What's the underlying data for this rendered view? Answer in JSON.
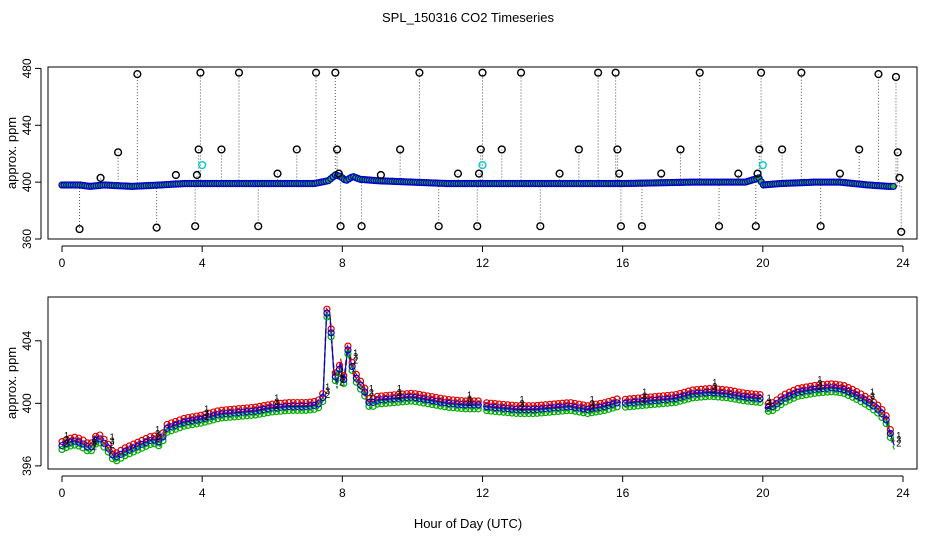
{
  "title": "SPL_150316  CO2 Timeseries",
  "xlabel": "Hour of Day (UTC)",
  "chart_data": [
    {
      "type": "scatter",
      "panel": "top",
      "ylabel": "approx. ppm",
      "xlim": [
        -0.4,
        24.4
      ],
      "ylim": [
        360,
        481
      ],
      "xticks": [
        0,
        4,
        8,
        12,
        16,
        20,
        24
      ],
      "yticks": [
        360,
        400,
        440,
        480
      ],
      "baseline": [
        [
          0.0,
          398
        ],
        [
          0.5,
          398
        ],
        [
          0.8,
          397
        ],
        [
          1.2,
          398
        ],
        [
          2.0,
          397
        ],
        [
          2.8,
          398
        ],
        [
          3.5,
          399
        ],
        [
          4.0,
          399
        ],
        [
          6.0,
          399
        ],
        [
          7.2,
          399
        ],
        [
          7.6,
          401
        ],
        [
          7.8,
          405
        ],
        [
          7.95,
          404
        ],
        [
          8.1,
          401
        ],
        [
          8.3,
          404
        ],
        [
          8.5,
          402
        ],
        [
          9.0,
          401
        ],
        [
          10.0,
          400
        ],
        [
          11.0,
          399
        ],
        [
          13.0,
          399
        ],
        [
          14.0,
          399
        ],
        [
          16.0,
          399
        ],
        [
          18.0,
          400
        ],
        [
          19.5,
          400
        ],
        [
          19.9,
          403
        ],
        [
          20.0,
          398
        ],
        [
          20.5,
          399
        ],
        [
          21.5,
          400
        ],
        [
          22.2,
          400
        ],
        [
          23.0,
          398
        ],
        [
          23.6,
          397
        ],
        [
          23.75,
          397
        ]
      ],
      "spikes": [
        {
          "x": 0.5,
          "y": 367
        },
        {
          "x": 1.1,
          "y": 403
        },
        {
          "x": 1.6,
          "y": 421
        },
        {
          "x": 2.15,
          "y": 476
        },
        {
          "x": 2.7,
          "y": 368
        },
        {
          "x": 3.25,
          "y": 405
        },
        {
          "x": 3.8,
          "y": 369
        },
        {
          "x": 3.85,
          "y": 405
        },
        {
          "x": 3.9,
          "y": 423
        },
        {
          "x": 3.95,
          "y": 477
        },
        {
          "x": 4.55,
          "y": 423
        },
        {
          "x": 5.05,
          "y": 477
        },
        {
          "x": 5.6,
          "y": 369
        },
        {
          "x": 6.15,
          "y": 406
        },
        {
          "x": 6.7,
          "y": 423
        },
        {
          "x": 7.25,
          "y": 477
        },
        {
          "x": 7.8,
          "y": 477
        },
        {
          "x": 7.85,
          "y": 423
        },
        {
          "x": 7.9,
          "y": 406
        },
        {
          "x": 7.95,
          "y": 369
        },
        {
          "x": 8.55,
          "y": 369
        },
        {
          "x": 9.1,
          "y": 405
        },
        {
          "x": 9.65,
          "y": 423
        },
        {
          "x": 10.2,
          "y": 477
        },
        {
          "x": 10.75,
          "y": 369
        },
        {
          "x": 11.3,
          "y": 406
        },
        {
          "x": 11.85,
          "y": 369
        },
        {
          "x": 11.9,
          "y": 406
        },
        {
          "x": 11.95,
          "y": 423
        },
        {
          "x": 12.0,
          "y": 477
        },
        {
          "x": 12.55,
          "y": 423
        },
        {
          "x": 13.1,
          "y": 477
        },
        {
          "x": 13.65,
          "y": 369
        },
        {
          "x": 14.2,
          "y": 406
        },
        {
          "x": 14.75,
          "y": 423
        },
        {
          "x": 15.3,
          "y": 477
        },
        {
          "x": 15.8,
          "y": 477
        },
        {
          "x": 15.85,
          "y": 423
        },
        {
          "x": 15.9,
          "y": 406
        },
        {
          "x": 15.95,
          "y": 369
        },
        {
          "x": 16.55,
          "y": 369
        },
        {
          "x": 17.1,
          "y": 406
        },
        {
          "x": 17.65,
          "y": 423
        },
        {
          "x": 18.2,
          "y": 477
        },
        {
          "x": 18.75,
          "y": 369
        },
        {
          "x": 19.3,
          "y": 406
        },
        {
          "x": 19.8,
          "y": 369
        },
        {
          "x": 19.85,
          "y": 406
        },
        {
          "x": 19.9,
          "y": 423
        },
        {
          "x": 19.95,
          "y": 477
        },
        {
          "x": 20.55,
          "y": 423
        },
        {
          "x": 21.1,
          "y": 477
        },
        {
          "x": 21.65,
          "y": 369
        },
        {
          "x": 22.2,
          "y": 406
        },
        {
          "x": 22.75,
          "y": 423
        },
        {
          "x": 23.3,
          "y": 476
        },
        {
          "x": 23.8,
          "y": 474
        },
        {
          "x": 23.85,
          "y": 421
        },
        {
          "x": 23.9,
          "y": 403
        },
        {
          "x": 23.95,
          "y": 365
        }
      ],
      "cyan_points": [
        {
          "x": 4.0,
          "y": 412
        },
        {
          "x": 12.0,
          "y": 412
        },
        {
          "x": 20.0,
          "y": 412
        }
      ],
      "colors": {
        "spike": "#000000",
        "baseline": "#0000cc",
        "baseline_fill": "#22bb22",
        "cyan": "#00cccc",
        "drop": "#555555"
      }
    },
    {
      "type": "line",
      "panel": "bottom",
      "ylabel": "approx. ppm",
      "xlim": [
        -0.4,
        24.4
      ],
      "ylim": [
        395.8,
        406.8
      ],
      "xticks": [
        0,
        4,
        8,
        12,
        16,
        20,
        24
      ],
      "yticks": [
        396,
        400,
        404
      ],
      "gaps": [
        [
          11.95,
          12.05
        ],
        [
          15.95,
          16.05
        ],
        [
          19.95,
          20.05
        ]
      ],
      "series": [
        {
          "name": "1",
          "color": "#dd0000",
          "offset": 0.25
        },
        {
          "name": "2",
          "color": "#00aa00",
          "offset": -0.25
        },
        {
          "name": "3",
          "color": "#0000dd",
          "offset": 0
        }
      ],
      "x": [
        0.0,
        0.2,
        0.4,
        0.6,
        0.8,
        0.9,
        1.0,
        1.1,
        1.3,
        1.5,
        1.8,
        2.2,
        2.6,
        2.8,
        3.0,
        3.5,
        4.0,
        4.5,
        5.0,
        5.5,
        6.0,
        6.5,
        7.0,
        7.3,
        7.45,
        7.55,
        7.65,
        7.75,
        7.85,
        7.95,
        8.05,
        8.15,
        8.25,
        8.35,
        8.5,
        8.6,
        8.7,
        8.8,
        8.9,
        9.0,
        9.5,
        10.0,
        10.5,
        11.0,
        11.5,
        11.95,
        12.05,
        12.5,
        13.0,
        13.5,
        14.0,
        14.5,
        15.0,
        15.5,
        15.95,
        16.05,
        16.5,
        17.0,
        17.5,
        18.0,
        18.5,
        19.0,
        19.5,
        19.95,
        20.05,
        20.3,
        20.6,
        21.0,
        21.5,
        22.0,
        22.3,
        22.6,
        23.0,
        23.3,
        23.5,
        23.65,
        23.75
      ],
      "y": [
        397.3,
        397.5,
        397.6,
        397.4,
        397.1,
        397.4,
        397.8,
        397.7,
        397.2,
        396.5,
        396.9,
        397.3,
        397.7,
        397.5,
        398.4,
        398.8,
        399.0,
        399.3,
        399.4,
        399.5,
        399.7,
        399.8,
        399.8,
        399.9,
        400.4,
        405.8,
        405.5,
        402.2,
        401.2,
        402.6,
        401.4,
        403.5,
        402.6,
        401.8,
        401.2,
        401.0,
        400.3,
        399.9,
        400.1,
        400.2,
        400.3,
        400.4,
        400.2,
        400.0,
        399.9,
        399.9,
        399.8,
        399.7,
        399.6,
        399.6,
        399.7,
        399.8,
        399.6,
        399.8,
        400.1,
        400.0,
        400.1,
        400.2,
        400.3,
        400.6,
        400.7,
        400.6,
        400.4,
        400.3,
        399.7,
        399.8,
        400.3,
        400.7,
        400.9,
        401.0,
        400.9,
        400.6,
        400.1,
        399.6,
        399.1,
        398.0,
        397.3
      ]
    }
  ]
}
